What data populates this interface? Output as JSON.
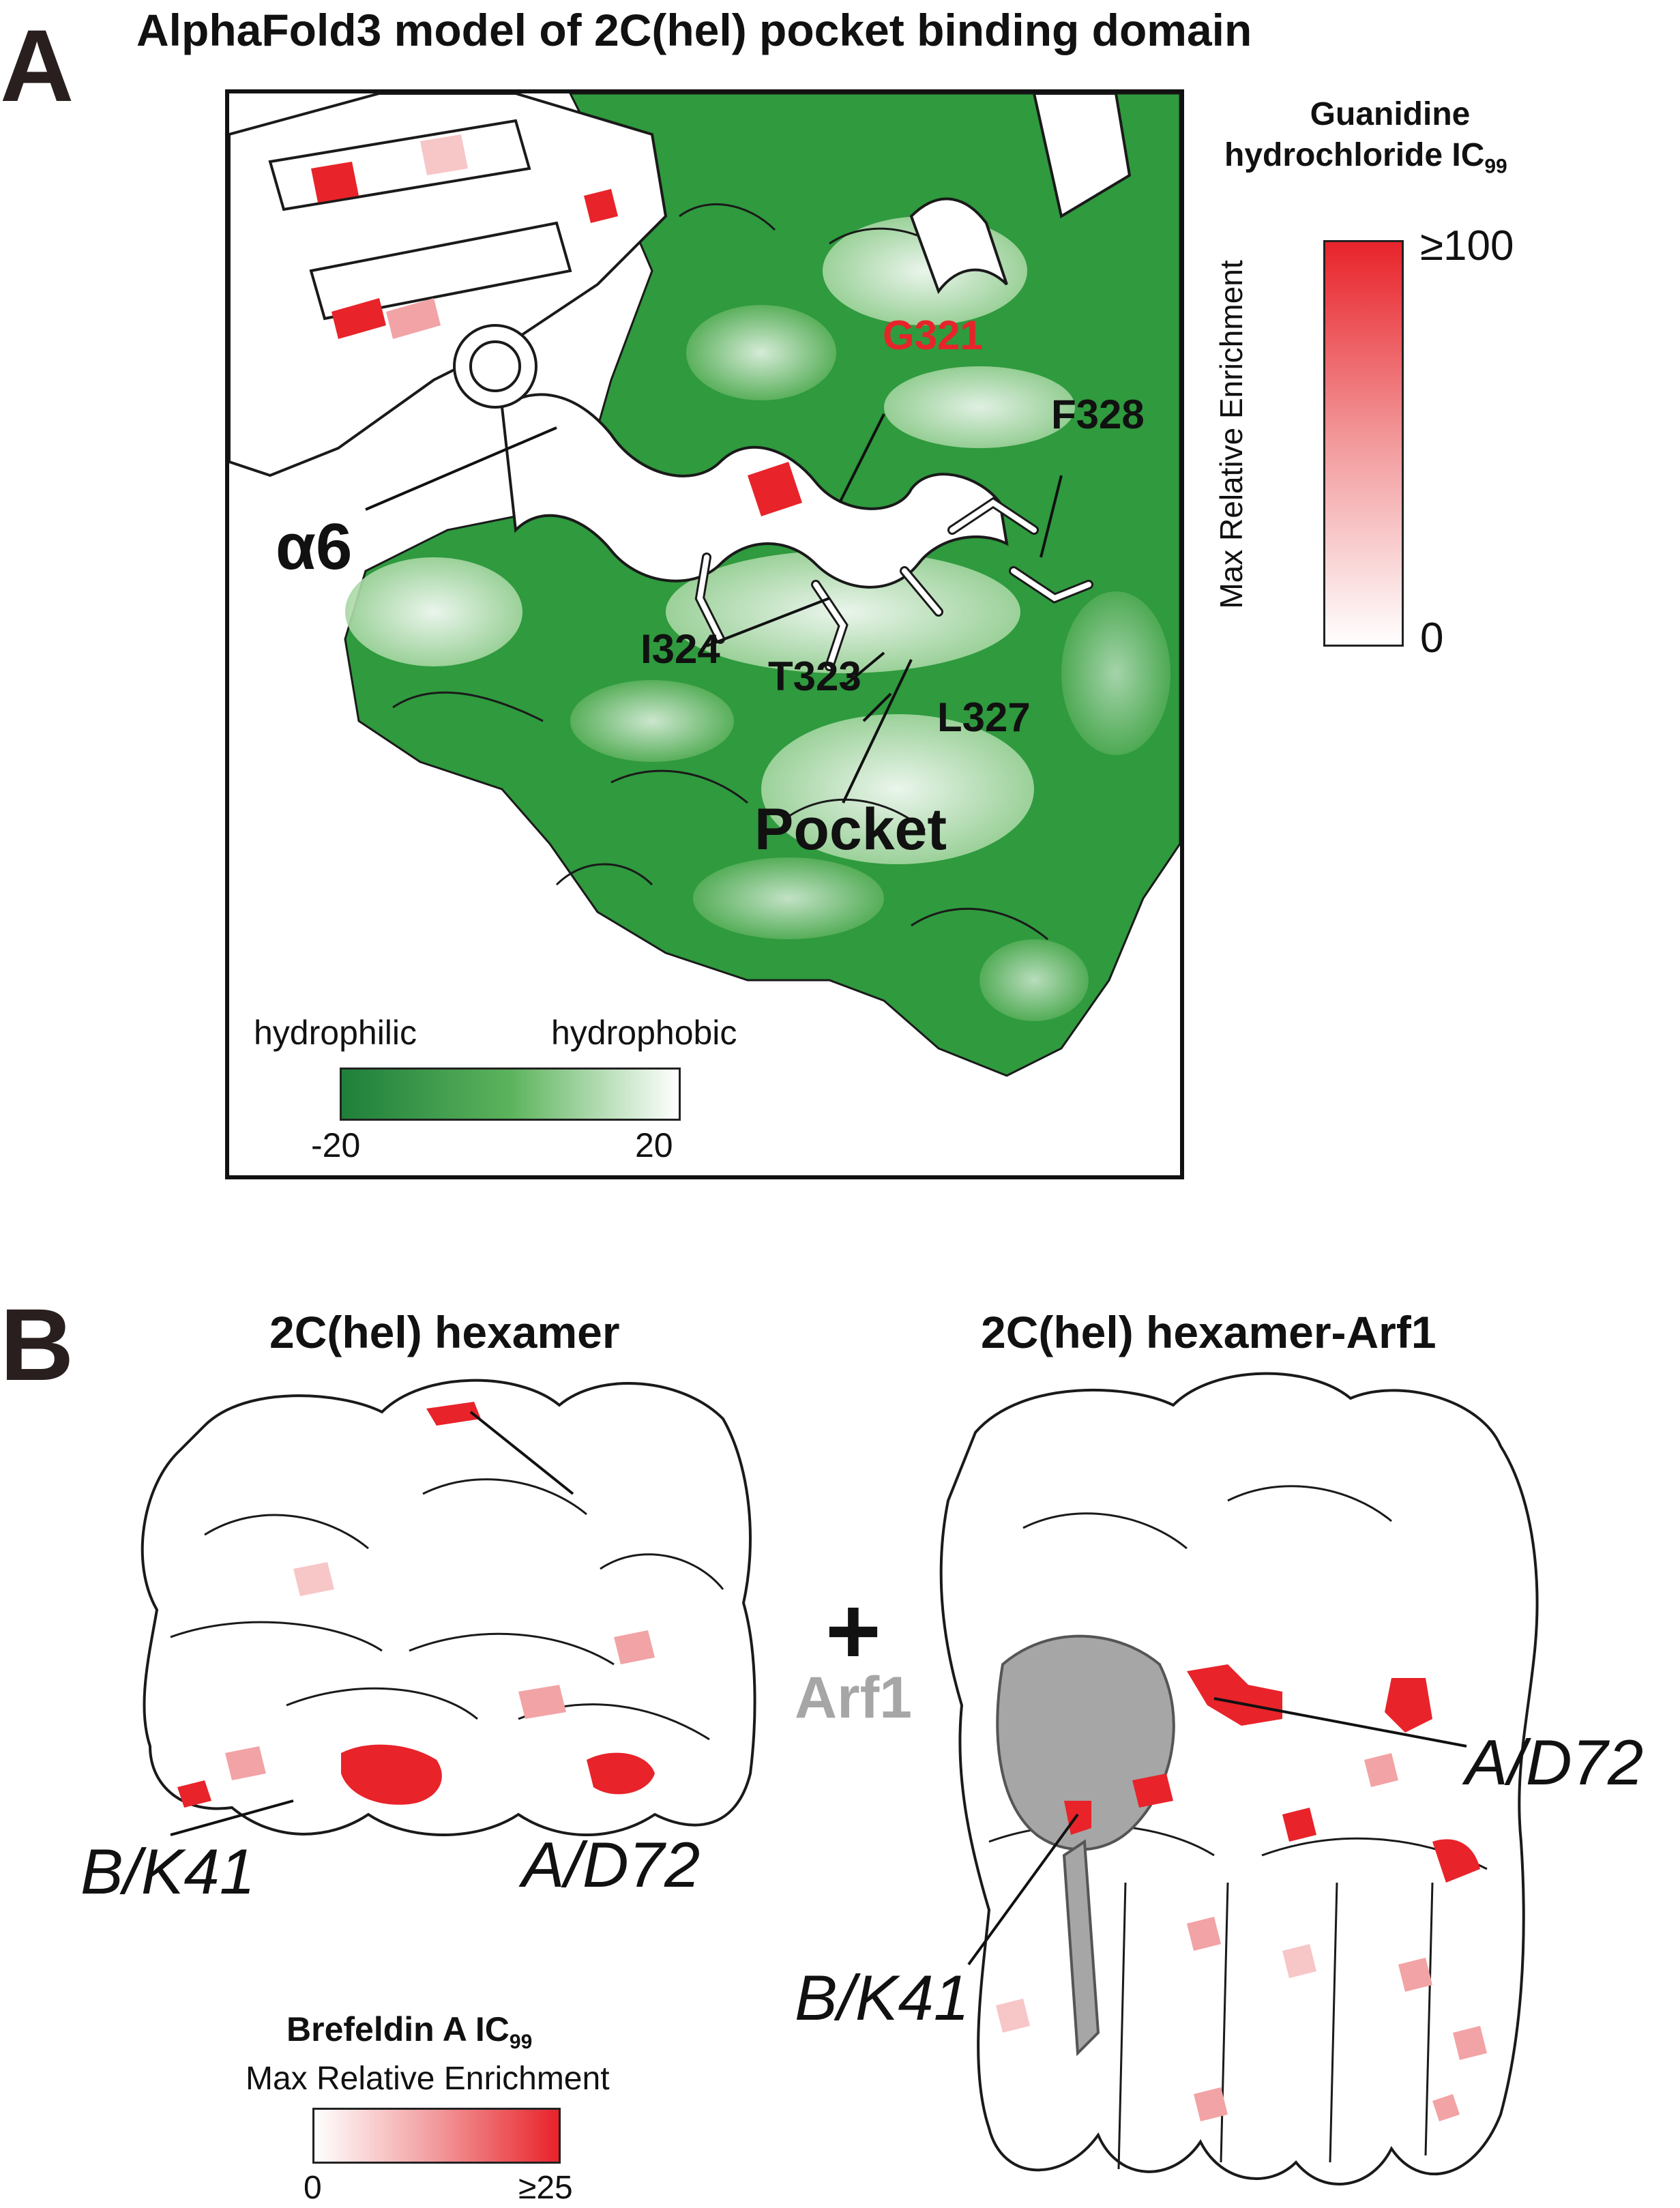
{
  "panel_a": {
    "letter": "A",
    "title": "AlphaFold3 model of 2C(hel) pocket binding domain",
    "labels": {
      "g321": "G321",
      "f328": "F328",
      "alpha6": "α6",
      "i324": "I324",
      "t323": "T323",
      "l327": "L327",
      "pocket": "Pocket"
    },
    "hydro_legend": {
      "left_label": "hydrophilic",
      "right_label": "hydrophobic",
      "min": "-20",
      "max": "20",
      "color_min": "#1e7f3a",
      "color_max": "#ffffff"
    },
    "enrichment_legend": {
      "title_line1": "Guanidine",
      "title_line2": "hydrochloride IC",
      "title_sub": "99",
      "axis_label": "Max Relative Enrichment",
      "max": "≥100",
      "min": "0",
      "color_max": "#e8232a",
      "color_min": "#ffffff"
    }
  },
  "panel_b": {
    "letter": "B",
    "left_title": "2C(hel) hexamer",
    "right_title": "2C(hel) hexamer-Arf1",
    "plus": "+",
    "arf1": "Arf1",
    "labels": {
      "left_bk41": "B/K41",
      "left_ad72": "A/D72",
      "right_ad72": "A/D72",
      "right_bk41": "B/K41"
    },
    "legend": {
      "title": "Brefeldin A IC",
      "title_sub": "99",
      "subtitle": "Max Relative Enrichment",
      "min": "0",
      "max": "≥25",
      "color_min": "#ffffff",
      "color_max": "#e8232a"
    },
    "colors": {
      "enriched": "#e8232a",
      "arf1": "#a6a6a6"
    }
  }
}
